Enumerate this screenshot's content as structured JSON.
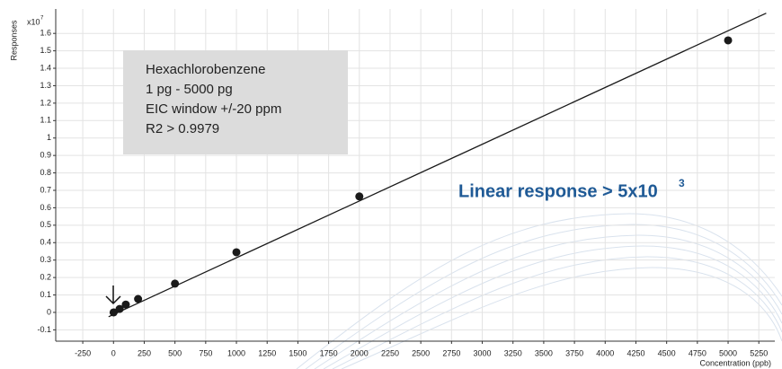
{
  "chart_data": {
    "type": "scatter",
    "y_label": "Responses",
    "x_label": "Concentration (ppb)",
    "y_multiplier": "x10",
    "y_multiplier_exponent": "7",
    "annotation_lines": [
      "Hexachlorobenzene",
      "1 pg - 5000 pg",
      "EIC window +/-20 ppm",
      "R2 > 0.9979"
    ],
    "highlight": "Linear response > 5x10",
    "highlight_exponent": "3",
    "x": [
      1,
      50,
      100,
      200,
      500,
      1000,
      2000,
      5000
    ],
    "values": [
      0.0,
      0.02,
      0.045,
      0.077,
      0.165,
      0.345,
      0.665,
      1.56
    ],
    "color": "#1a1a1a",
    "fit": {
      "x": [
        -40,
        5310
      ],
      "values": [
        -0.025,
        1.716
      ],
      "color": "#1a1a1a"
    },
    "xlim": [
      -470,
      5380
    ],
    "ylim": [
      -0.165,
      1.74
    ],
    "xticks": [
      -250,
      0,
      250,
      500,
      750,
      1000,
      1250,
      1500,
      1750,
      2000,
      2250,
      2500,
      2750,
      3000,
      3250,
      3500,
      3750,
      4000,
      4250,
      4500,
      4750,
      5000,
      5250
    ],
    "yticks": [
      -0.1,
      0,
      0.1,
      0.2,
      0.3,
      0.4,
      0.5,
      0.6,
      0.7,
      0.8,
      0.9,
      1,
      1.1,
      1.2,
      1.3,
      1.4,
      1.5,
      1.6
    ],
    "grid": true
  }
}
